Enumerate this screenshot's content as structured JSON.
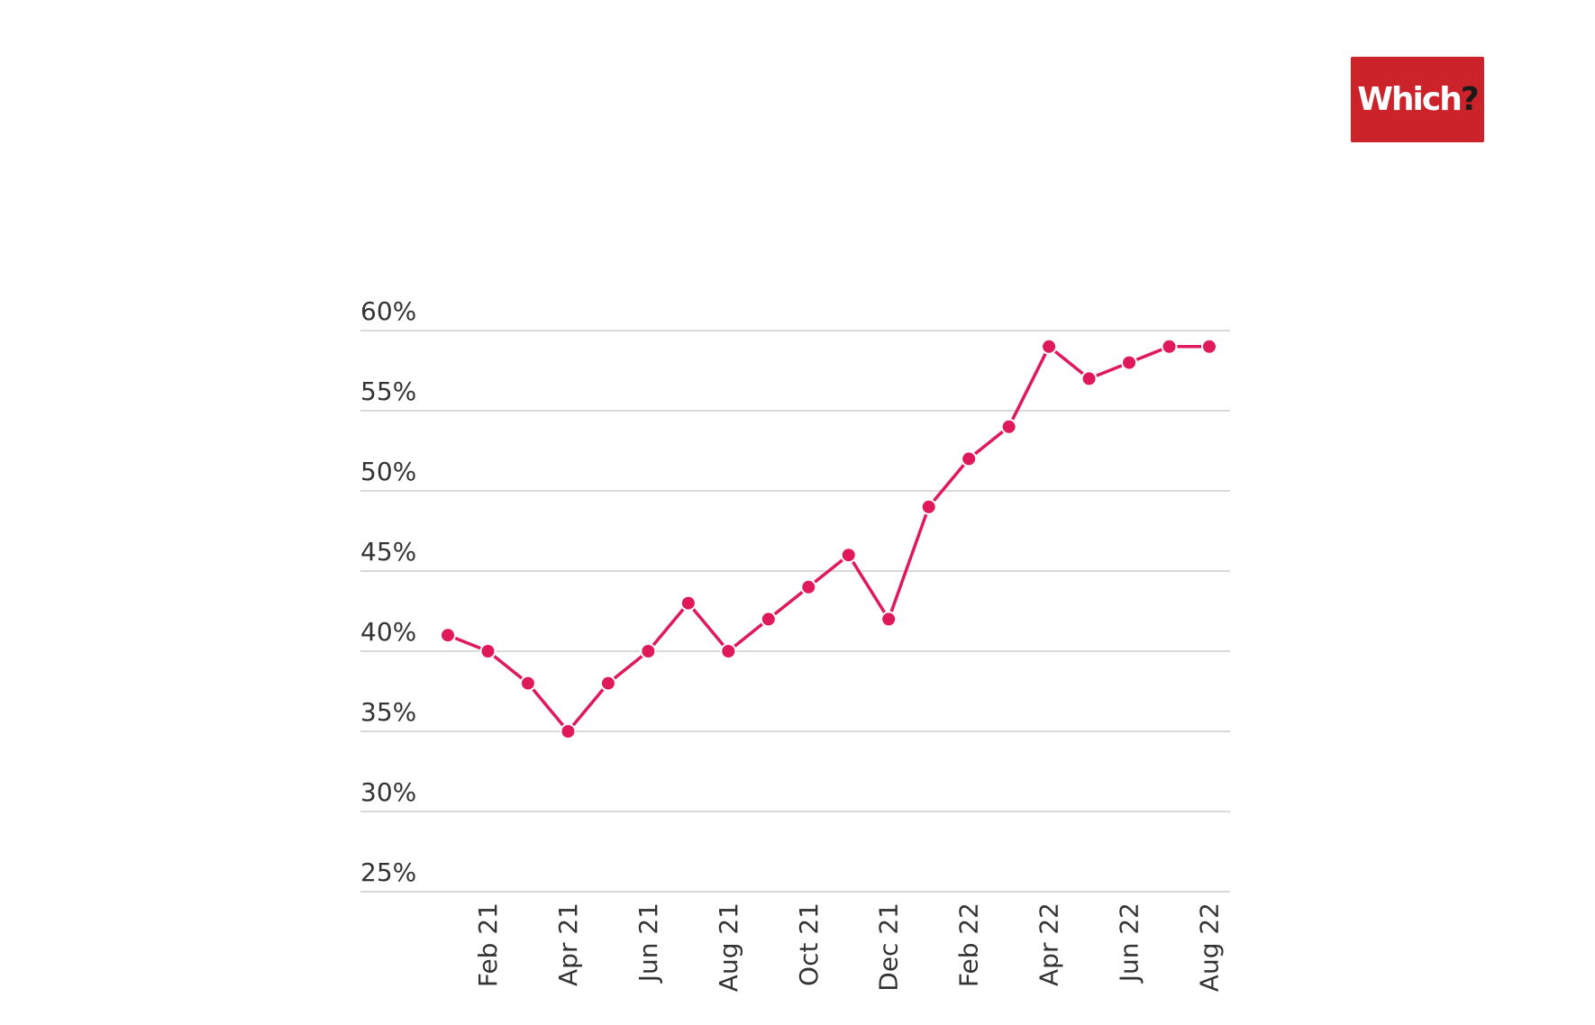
{
  "logo": {
    "text": "Which",
    "mark": "?",
    "background_color": "#cc2229"
  },
  "chart_data": {
    "type": "line",
    "title": "",
    "xlabel": "",
    "ylabel": "",
    "ylim": [
      25,
      60
    ],
    "y_ticks": [
      "25%",
      "30%",
      "35%",
      "40%",
      "45%",
      "50%",
      "55%",
      "60%"
    ],
    "y_tick_values": [
      25,
      30,
      35,
      40,
      45,
      50,
      55,
      60
    ],
    "grid": true,
    "x": [
      "Jan 21",
      "Feb 21",
      "Mar 21",
      "Apr 21",
      "May 21",
      "Jun 21",
      "Jul 21",
      "Aug 21",
      "Sep 21",
      "Oct 21",
      "Nov 21",
      "Dec 21",
      "Jan 22",
      "Feb 22",
      "Mar 22",
      "Apr 22",
      "May 22",
      "Jun 22",
      "Jul 22",
      "Aug 22"
    ],
    "x_tick_labels": [
      "Feb 21",
      "Apr 21",
      "Jun 21",
      "Aug 21",
      "Oct 21",
      "Dec 21",
      "Feb 22",
      "Apr 22",
      "Jun 22",
      "Aug 22"
    ],
    "series": [
      {
        "color": "#e0195a",
        "values": [
          41,
          40,
          38,
          35,
          38,
          40,
          43,
          40,
          42,
          44,
          46,
          42,
          49,
          52,
          54,
          59,
          57,
          58,
          59,
          59
        ]
      }
    ]
  }
}
